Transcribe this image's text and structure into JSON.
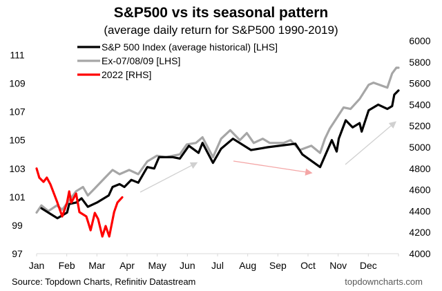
{
  "chart_data": {
    "type": "line",
    "title": "S&P500 vs its seasonal pattern",
    "subtitle": "(average daily return for S&P500 1990-2019)",
    "xlabel": "",
    "ylabel_left": "",
    "ylabel_right": "",
    "x_unit": "month of year (0 = start of Jan, 12 = end of Dec)",
    "xlim": [
      0,
      12
    ],
    "ylim_left": [
      97,
      112
    ],
    "ylim_right": [
      4000,
      6000
    ],
    "x_ticks": [
      "Jan",
      "Feb",
      "Mar",
      "Apr",
      "May",
      "Jun",
      "Jul",
      "Aug",
      "Sep",
      "Oct",
      "Nov",
      "Dec"
    ],
    "y_ticks_left": [
      "97",
      "99",
      "101",
      "103",
      "105",
      "107",
      "109",
      "111"
    ],
    "y_ticks_right": [
      "4000",
      "4200",
      "4400",
      "4600",
      "4800",
      "5000",
      "5200",
      "5400",
      "5600",
      "5800",
      "6000"
    ],
    "grid": false,
    "legend_position": "top-left",
    "series": [
      {
        "name": "S&P 500 Index (average historical) [LHS]",
        "axis": "left",
        "color": "#000000",
        "points": [
          [
            0.16,
            100.2
          ],
          [
            0.46,
            99.8
          ],
          [
            0.69,
            99.5
          ],
          [
            1.01,
            99.9
          ],
          [
            1.08,
            100.5
          ],
          [
            1.31,
            100.6
          ],
          [
            1.49,
            100.9
          ],
          [
            1.7,
            100.3
          ],
          [
            2.0,
            100.6
          ],
          [
            2.39,
            101.1
          ],
          [
            2.52,
            101.7
          ],
          [
            2.75,
            101.9
          ],
          [
            2.91,
            101.7
          ],
          [
            3.14,
            102.2
          ],
          [
            3.37,
            102.0
          ],
          [
            3.67,
            103.1
          ],
          [
            3.9,
            103.0
          ],
          [
            4.06,
            103.8
          ],
          [
            4.52,
            103.8
          ],
          [
            4.75,
            103.7
          ],
          [
            5.05,
            104.6
          ],
          [
            5.37,
            104.1
          ],
          [
            5.5,
            104.8
          ],
          [
            5.85,
            103.4
          ],
          [
            6.12,
            104.4
          ],
          [
            6.51,
            105.1
          ],
          [
            7.11,
            104.3
          ],
          [
            7.66,
            104.5
          ],
          [
            8.58,
            104.75
          ],
          [
            8.81,
            104.0
          ],
          [
            9.4,
            103.1
          ],
          [
            9.79,
            105.0
          ],
          [
            9.95,
            104.2
          ],
          [
            10.02,
            105.1
          ],
          [
            10.25,
            106.4
          ],
          [
            10.48,
            105.9
          ],
          [
            10.71,
            106.2
          ],
          [
            10.78,
            105.6
          ],
          [
            11.01,
            107.1
          ],
          [
            11.33,
            107.5
          ],
          [
            11.63,
            107.2
          ],
          [
            11.79,
            107.4
          ],
          [
            11.86,
            108.2
          ],
          [
            12.0,
            108.5
          ]
        ]
      },
      {
        "name": "Ex-07/08/09 [LHS]",
        "axis": "left",
        "color": "#a6a6a6",
        "points": [
          [
            0,
            99.9
          ],
          [
            0.16,
            100.4
          ],
          [
            0.39,
            100.0
          ],
          [
            0.67,
            100.4
          ],
          [
            0.85,
            100.1
          ],
          [
            1.31,
            101.4
          ],
          [
            1.54,
            101.7
          ],
          [
            1.7,
            101.1
          ],
          [
            1.93,
            101.6
          ],
          [
            2.29,
            102.4
          ],
          [
            2.52,
            102.9
          ],
          [
            2.75,
            102.6
          ],
          [
            3.07,
            102.9
          ],
          [
            3.37,
            102.6
          ],
          [
            3.67,
            103.5
          ],
          [
            3.99,
            103.9
          ],
          [
            4.29,
            103.8
          ],
          [
            4.75,
            104.0
          ],
          [
            4.98,
            104.7
          ],
          [
            5.28,
            104.8
          ],
          [
            5.5,
            105.2
          ],
          [
            5.85,
            103.8
          ],
          [
            6.12,
            105.1
          ],
          [
            6.42,
            105.7
          ],
          [
            6.74,
            105.0
          ],
          [
            6.97,
            105.5
          ],
          [
            7.2,
            104.8
          ],
          [
            7.5,
            105.1
          ],
          [
            7.73,
            104.8
          ],
          [
            8.19,
            104.8
          ],
          [
            8.42,
            105.0
          ],
          [
            8.72,
            104.3
          ],
          [
            9.11,
            104.6
          ],
          [
            9.4,
            104.1
          ],
          [
            9.56,
            105.1
          ],
          [
            9.72,
            105.8
          ],
          [
            10.18,
            107.3
          ],
          [
            10.41,
            107.2
          ],
          [
            10.71,
            107.9
          ],
          [
            11.01,
            108.9
          ],
          [
            11.17,
            109.05
          ],
          [
            11.63,
            108.7
          ],
          [
            11.79,
            109.7
          ],
          [
            11.93,
            110.1
          ],
          [
            12.0,
            110.1
          ]
        ]
      },
      {
        "name": "2022 [RHS]",
        "axis": "right",
        "color": "#ff0000",
        "points": [
          [
            0,
            4800
          ],
          [
            0.09,
            4714
          ],
          [
            0.23,
            4675
          ],
          [
            0.34,
            4714
          ],
          [
            0.46,
            4650
          ],
          [
            0.69,
            4480
          ],
          [
            0.85,
            4350
          ],
          [
            1.01,
            4480
          ],
          [
            1.08,
            4585
          ],
          [
            1.15,
            4480
          ],
          [
            1.31,
            4565
          ],
          [
            1.42,
            4390
          ],
          [
            1.65,
            4350
          ],
          [
            1.79,
            4220
          ],
          [
            1.93,
            4383
          ],
          [
            2.04,
            4325
          ],
          [
            2.18,
            4162
          ],
          [
            2.29,
            4260
          ],
          [
            2.41,
            4162
          ],
          [
            2.57,
            4390
          ],
          [
            2.68,
            4480
          ],
          [
            2.84,
            4530
          ]
        ]
      }
    ],
    "source": "Source: Topdown Charts, Refinitiv Datastream",
    "watermark": "topdowncharts.com"
  }
}
